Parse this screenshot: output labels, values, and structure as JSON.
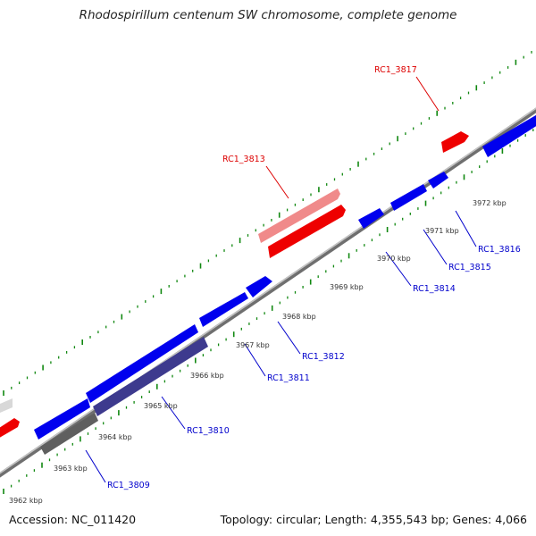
{
  "title": "Rhodospirillum centenum SW chromosome, complete genome",
  "footer": {
    "accession": "Accession: NC_011420",
    "summary": "Topology: circular; Length: 4,355,543 bp; Genes: 4,066"
  },
  "colors": {
    "forward_gene": "#ee0000",
    "forward_gene_light": "#f08a8a",
    "reverse_gene": "#0000ee",
    "reverse_gene_dark": "#3d3a8e",
    "grey_gene": "#5f5f5f",
    "backbone": "#8a8a8a",
    "tick": "#118811",
    "forward_label": "#dd0000",
    "reverse_label": "#0000cc"
  },
  "scale_ticks": [
    {
      "label": "3962 kbp"
    },
    {
      "label": "3963 kbp"
    },
    {
      "label": "3964 kbp"
    },
    {
      "label": "3965 kbp"
    },
    {
      "label": "3966 kbp"
    },
    {
      "label": "3967 kbp"
    },
    {
      "label": "3968 kbp"
    },
    {
      "label": "3969 kbp"
    },
    {
      "label": "3970 kbp"
    },
    {
      "label": "3971 kbp"
    },
    {
      "label": "3972 kbp"
    }
  ],
  "gene_labels": {
    "forward": [
      "RC1_3813",
      "RC1_3817"
    ],
    "reverse": [
      "RC1_3809",
      "RC1_3810",
      "RC1_3811",
      "RC1_3812",
      "RC1_3814",
      "RC1_3815",
      "RC1_3816"
    ]
  }
}
